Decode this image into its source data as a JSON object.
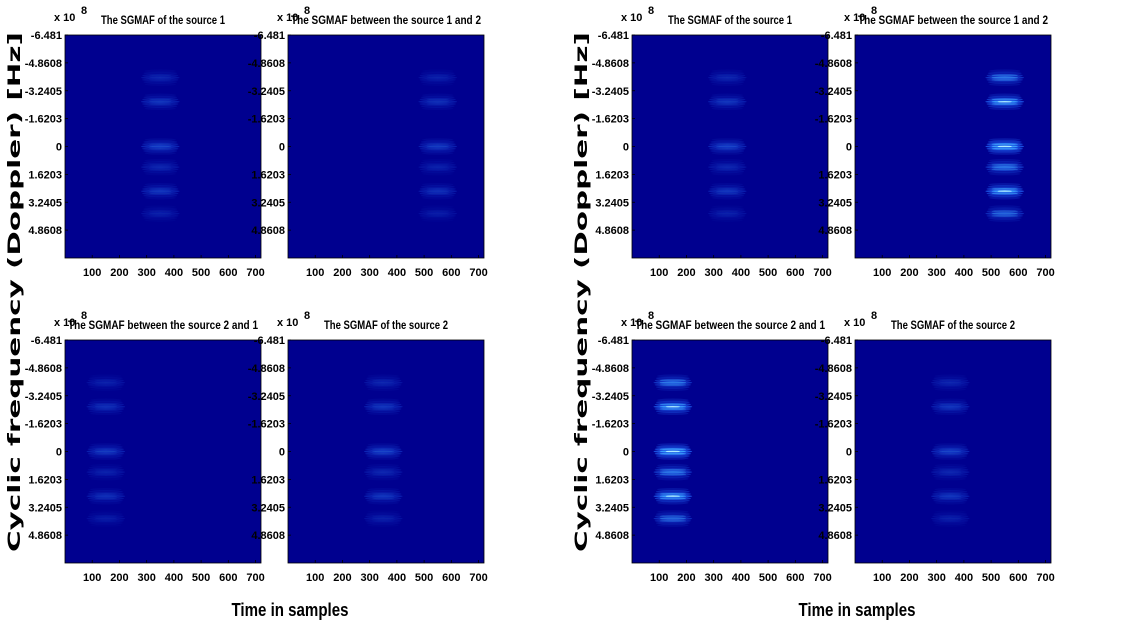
{
  "figure": {
    "colors": {
      "background": "#00008f",
      "medium": "#1a4fe0",
      "bright": "#3fa8ff",
      "peak": "#c8ffff"
    },
    "groups": [
      {
        "xlabel": "Time in samples",
        "ylabel": "Cyclic frequency (Doppler) [Hz]",
        "panels": [
          {
            "title": "The SGMAF of the source 1",
            "exponent": "x 10",
            "exponent_power": "8",
            "chart_data": {
              "type": "heatmap",
              "x_ticks": [
                "100",
                "200",
                "300",
                "400",
                "500",
                "600",
                "700"
              ],
              "xlim": [
                0,
                720
              ],
              "y_ticks": [
                "-6.481",
                "-4.8608",
                "-3.2405",
                "-1.6203",
                "0",
                "1.6203",
                "3.2405",
                "4.8608"
              ],
              "ylim": [
                -6.481,
                6.481
              ],
              "colormap": "jet",
              "energy_center_x": 350,
              "energy_halfwidth_x": 75,
              "intensity": 0.35
            }
          },
          {
            "title": "The SGMAF between the source 1 and 2",
            "exponent": "x 10",
            "exponent_power": "8",
            "chart_data": {
              "type": "heatmap",
              "x_ticks": [
                "100",
                "200",
                "300",
                "400",
                "500",
                "600",
                "700"
              ],
              "xlim": [
                0,
                720
              ],
              "y_ticks": [
                "-6.481",
                "-4.8608",
                "-3.2405",
                "-1.6203",
                "0",
                "1.6203",
                "3.2405",
                "4.8608"
              ],
              "ylim": [
                -6.481,
                6.481
              ],
              "colormap": "jet",
              "energy_center_x": 550,
              "energy_halfwidth_x": 75,
              "intensity": 0.3
            }
          },
          {
            "title": "The SGMAF between the source 2 and 1",
            "exponent": "x 10",
            "exponent_power": "8",
            "chart_data": {
              "type": "heatmap",
              "x_ticks": [
                "100",
                "200",
                "300",
                "400",
                "500",
                "600",
                "700"
              ],
              "xlim": [
                0,
                720
              ],
              "y_ticks": [
                "-6.481",
                "-4.8608",
                "-3.2405",
                "-1.6203",
                "0",
                "1.6203",
                "3.2405",
                "4.8608"
              ],
              "ylim": [
                -6.481,
                6.481
              ],
              "colormap": "jet",
              "energy_center_x": 150,
              "energy_halfwidth_x": 75,
              "intensity": 0.3
            }
          },
          {
            "title": "The SGMAF of the source 2",
            "exponent": "x 10",
            "exponent_power": "8",
            "chart_data": {
              "type": "heatmap",
              "x_ticks": [
                "100",
                "200",
                "300",
                "400",
                "500",
                "600",
                "700"
              ],
              "xlim": [
                0,
                720
              ],
              "y_ticks": [
                "-6.481",
                "-4.8608",
                "-3.2405",
                "-1.6203",
                "0",
                "1.6203",
                "3.2405",
                "4.8608"
              ],
              "ylim": [
                -6.481,
                6.481
              ],
              "colormap": "jet",
              "energy_center_x": 350,
              "energy_halfwidth_x": 75,
              "intensity": 0.35
            }
          }
        ]
      },
      {
        "xlabel": "Time in samples",
        "ylabel": "Cyclic frequency (Doppler) [Hz]",
        "panels": [
          {
            "title": "The SGMAF of the source 1",
            "exponent": "x 10",
            "exponent_power": "8",
            "chart_data": {
              "type": "heatmap",
              "x_ticks": [
                "100",
                "200",
                "300",
                "400",
                "500",
                "600",
                "700"
              ],
              "xlim": [
                0,
                720
              ],
              "y_ticks": [
                "-6.481",
                "-4.8608",
                "-3.2405",
                "-1.6203",
                "0",
                "1.6203",
                "3.2405",
                "4.8608"
              ],
              "ylim": [
                -6.481,
                6.481
              ],
              "colormap": "jet",
              "energy_center_x": 350,
              "energy_halfwidth_x": 75,
              "intensity": 0.35
            }
          },
          {
            "title": "The SGMAF between the source 1 and 2",
            "exponent": "x 10",
            "exponent_power": "8",
            "chart_data": {
              "type": "heatmap",
              "x_ticks": [
                "100",
                "200",
                "300",
                "400",
                "500",
                "600",
                "700"
              ],
              "xlim": [
                0,
                720
              ],
              "y_ticks": [
                "-6.481",
                "-4.8608",
                "-3.2405",
                "-1.6203",
                "0",
                "1.6203",
                "3.2405",
                "4.8608"
              ],
              "ylim": [
                -6.481,
                6.481
              ],
              "colormap": "jet",
              "energy_center_x": 550,
              "energy_halfwidth_x": 75,
              "intensity": 0.9
            }
          },
          {
            "title": "The SGMAF between the source 2 and 1",
            "exponent": "x 10",
            "exponent_power": "8",
            "chart_data": {
              "type": "heatmap",
              "x_ticks": [
                "100",
                "200",
                "300",
                "400",
                "500",
                "600",
                "700"
              ],
              "xlim": [
                0,
                720
              ],
              "y_ticks": [
                "-6.481",
                "-4.8608",
                "-3.2405",
                "-1.6203",
                "0",
                "1.6203",
                "3.2405",
                "4.8608"
              ],
              "ylim": [
                -6.481,
                6.481
              ],
              "colormap": "jet",
              "energy_center_x": 150,
              "energy_halfwidth_x": 75,
              "intensity": 0.9
            }
          },
          {
            "title": "The SGMAF of the source 2",
            "exponent": "x 10",
            "exponent_power": "8",
            "chart_data": {
              "type": "heatmap",
              "x_ticks": [
                "100",
                "200",
                "300",
                "400",
                "500",
                "600",
                "700"
              ],
              "xlim": [
                0,
                720
              ],
              "y_ticks": [
                "-6.481",
                "-4.8608",
                "-3.2405",
                "-1.6203",
                "0",
                "1.6203",
                "3.2405",
                "4.8608"
              ],
              "ylim": [
                -6.481,
                6.481
              ],
              "colormap": "jet",
              "energy_center_x": 350,
              "energy_halfwidth_x": 75,
              "intensity": 0.35
            }
          }
        ]
      }
    ]
  }
}
